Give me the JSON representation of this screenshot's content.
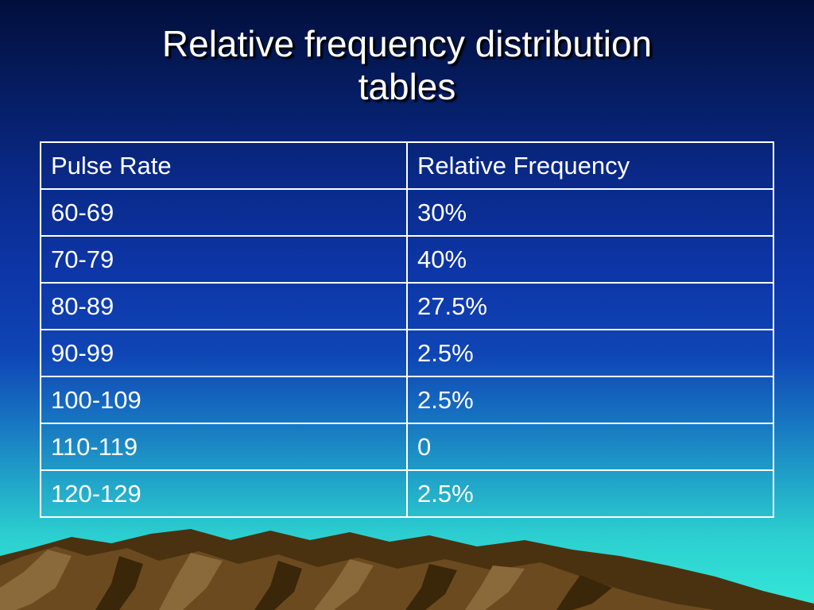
{
  "slide": {
    "title_line1": "Relative frequency distribution",
    "title_line2": "tables"
  },
  "table": {
    "headers": [
      "Pulse Rate",
      "Relative Frequency"
    ],
    "rows": [
      [
        "60-69",
        "30%"
      ],
      [
        "70-79",
        "40%"
      ],
      [
        "80-89",
        "27.5%"
      ],
      [
        "90-99",
        "2.5%"
      ],
      [
        "100-109",
        "2.5%"
      ],
      [
        "110-119",
        "0"
      ],
      [
        "120-129",
        "2.5%"
      ]
    ]
  },
  "colors": {
    "background_top": "#020f3c",
    "background_bottom": "#35e8d8",
    "text": "#ffffff",
    "mountain_brown": "#6b4a1f"
  }
}
